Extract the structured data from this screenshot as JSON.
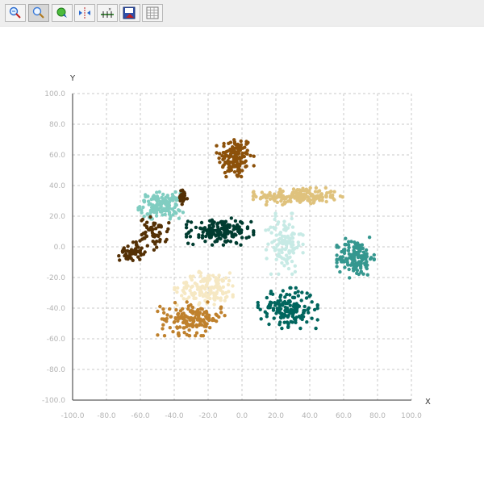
{
  "toolbar": {
    "buttons": [
      {
        "icon": "zoom-select-icon",
        "active": false
      },
      {
        "icon": "zoom-icon",
        "active": true
      },
      {
        "icon": "pan-icon",
        "active": false
      },
      {
        "icon": "fit-icon",
        "active": false
      },
      {
        "icon": "axis-scale-icon",
        "active": false
      },
      {
        "icon": "save-chart-icon",
        "active": false
      },
      {
        "icon": "data-table-icon",
        "active": false
      }
    ]
  },
  "chart_data": {
    "type": "scatter",
    "title": "",
    "xlabel": "X",
    "ylabel": "Y",
    "xlim": [
      -100,
      100
    ],
    "ylim": [
      -100,
      100
    ],
    "xticks": [
      "-100.0",
      "-80.0",
      "-60.0",
      "-40.0",
      "-20.0",
      "0.0",
      "20.0",
      "40.0",
      "60.0",
      "80.0",
      "100.0"
    ],
    "yticks": [
      "100.0",
      "80.0",
      "60.0",
      "40.0",
      "20.0",
      "0.0",
      "-20.0",
      "-40.0",
      "-60.0",
      "-80.0",
      "-100.0"
    ],
    "grid": true,
    "legend": "none",
    "clusters": [
      {
        "color": "#8c510a",
        "center": [
          -4,
          58
        ],
        "spread": [
          5,
          7
        ],
        "count": 140
      },
      {
        "color": "#dfc27d",
        "center": [
          33,
          33
        ],
        "spread": [
          12,
          2.5
        ],
        "count": 190
      },
      {
        "color": "#80cdc1",
        "center": [
          -48,
          27
        ],
        "spread": [
          6,
          4
        ],
        "count": 140
      },
      {
        "color": "#543005",
        "center": [
          -35,
          32
        ],
        "spread": [
          1.5,
          2.5
        ],
        "count": 25
      },
      {
        "color": "#543005",
        "center": [
          -52,
          9
        ],
        "spread": [
          4,
          5
        ],
        "count": 60
      },
      {
        "color": "#543005",
        "center": [
          -65,
          -3
        ],
        "spread": [
          3.5,
          3
        ],
        "count": 50
      },
      {
        "color": "#003c30",
        "center": [
          -13,
          10
        ],
        "spread": [
          9,
          4
        ],
        "count": 160
      },
      {
        "color": "#c7eae5",
        "center": [
          25,
          2
        ],
        "spread": [
          5,
          9
        ],
        "count": 120
      },
      {
        "color": "#35978f",
        "center": [
          67,
          -7
        ],
        "spread": [
          5,
          6
        ],
        "count": 150
      },
      {
        "color": "#f6e8c3",
        "center": [
          -20,
          -27
        ],
        "spread": [
          9,
          5
        ],
        "count": 150
      },
      {
        "color": "#bf812d",
        "center": [
          -30,
          -47
        ],
        "spread": [
          9,
          5
        ],
        "count": 150
      },
      {
        "color": "#01665e",
        "center": [
          27,
          -40
        ],
        "spread": [
          8,
          6
        ],
        "count": 170
      }
    ]
  }
}
